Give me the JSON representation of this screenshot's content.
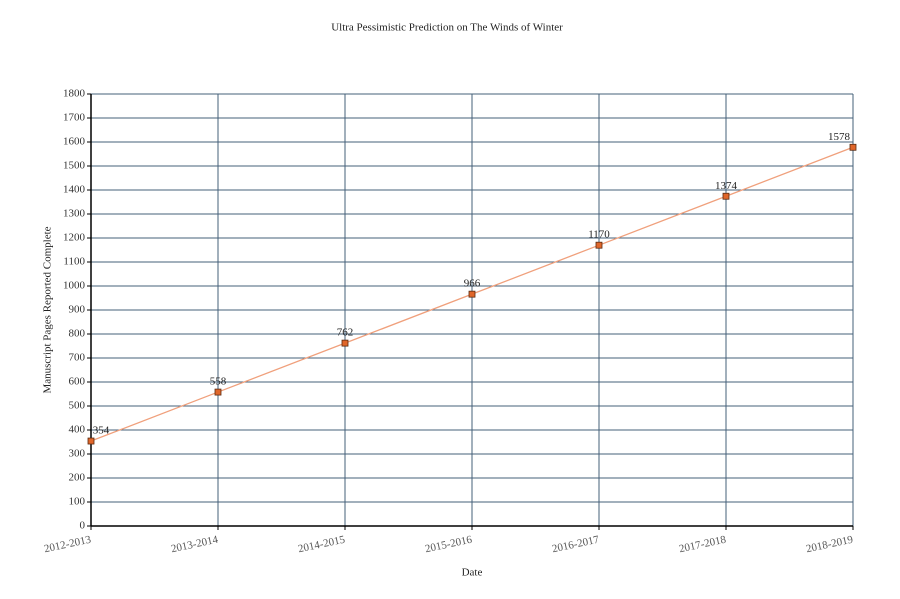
{
  "chart_data": {
    "type": "line",
    "title": "Ultra Pessimistic Prediction on The Winds of Winter",
    "x_label": "Date",
    "y_label": "Manuscript Pages Reported Complete",
    "categories": [
      "2012-2013",
      "2013-2014",
      "2014-2015",
      "2015-2016",
      "2016-2017",
      "2017-2018",
      "2018-2019"
    ],
    "series": [
      {
        "name": "Manuscript Pages Reported Complete",
        "color": "#f0a07c",
        "marker_color": "#e0662a",
        "values": [
          354,
          558,
          762,
          966,
          1170,
          1374,
          1578
        ]
      }
    ],
    "ylim": [
      0,
      1800
    ],
    "yticks": [
      0,
      100,
      200,
      300,
      400,
      500,
      600,
      700,
      800,
      900,
      1000,
      1100,
      1200,
      1300,
      1400,
      1500,
      1600,
      1700,
      1800
    ],
    "grid": true
  }
}
